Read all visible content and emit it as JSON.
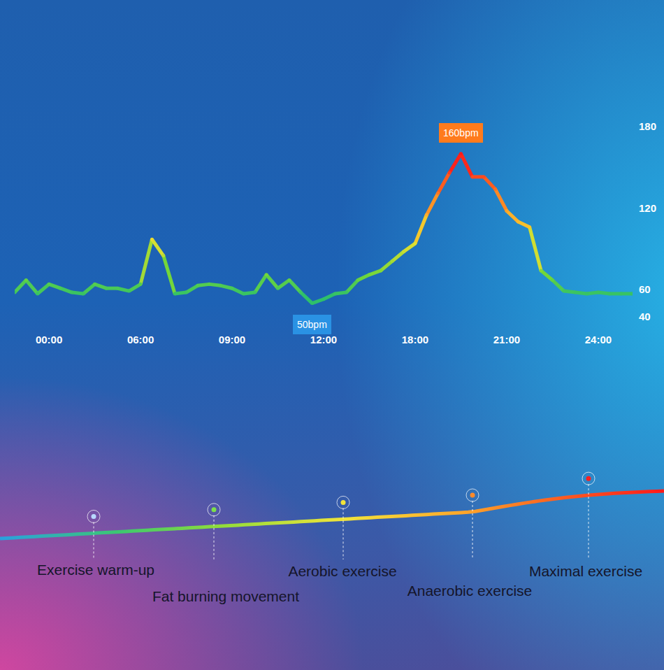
{
  "chart_data": {
    "type": "line",
    "categories": [
      null,
      null,
      null,
      "00:00",
      null,
      null,
      null,
      null,
      null,
      null,
      null,
      "06:00",
      null,
      null,
      null,
      null,
      null,
      null,
      null,
      "09:00",
      null,
      null,
      null,
      null,
      null,
      null,
      null,
      "12:00",
      null,
      null,
      null,
      null,
      null,
      null,
      null,
      "18:00",
      null,
      null,
      null,
      null,
      null,
      null,
      null,
      "21:00",
      null,
      null,
      null,
      null,
      null,
      null,
      null,
      "24:00",
      null,
      null,
      null
    ],
    "values": [
      58,
      67,
      57,
      64,
      61,
      58,
      57,
      64,
      61,
      61,
      59,
      64,
      97,
      85,
      57,
      58,
      63,
      64,
      63,
      61,
      57,
      58,
      71,
      61,
      67,
      58,
      50,
      53,
      57,
      58,
      67,
      71,
      74,
      81,
      88,
      94,
      115,
      131,
      146,
      160,
      143,
      143,
      134,
      118,
      110,
      106,
      74,
      67,
      59,
      58,
      57,
      58,
      57,
      57,
      57
    ],
    "ylim": [
      40,
      180
    ],
    "yticks": [
      40,
      60,
      120,
      180
    ],
    "grid": false,
    "annotations": [
      {
        "text": "160bpm",
        "x": 39,
        "y": 160,
        "color": "#ff7b1c"
      },
      {
        "text": "50bpm",
        "x": 26,
        "y": 50,
        "color": "#2a92e4"
      }
    ]
  },
  "zones": [
    "Exercise warm-up",
    "Fat burning movement",
    "Aerobic exercise",
    "Anaerobic exercise",
    "Maximal exercise"
  ]
}
